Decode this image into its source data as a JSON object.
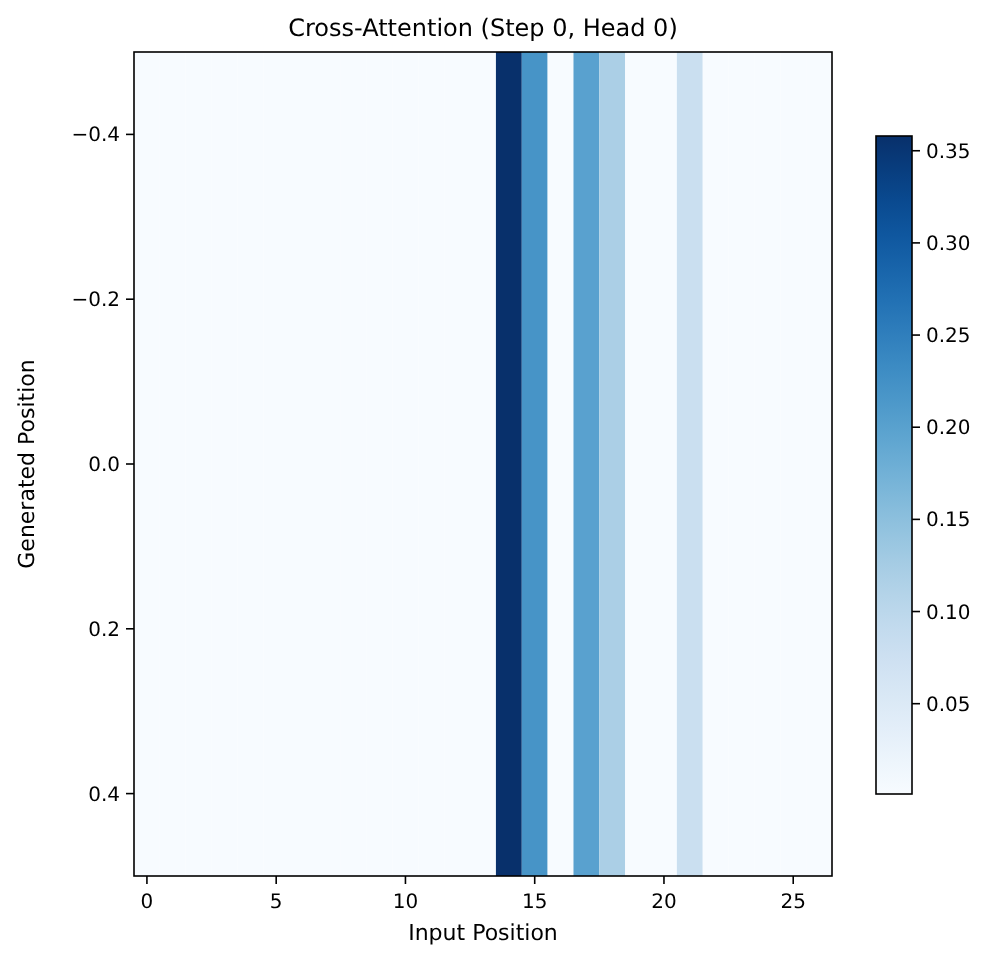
{
  "chart_data": {
    "type": "heatmap",
    "title": "Cross-Attention (Step 0, Head 0)",
    "xlabel": "Input Position",
    "ylabel": "Generated Position",
    "x": [
      0,
      1,
      2,
      3,
      4,
      5,
      6,
      7,
      8,
      9,
      10,
      11,
      12,
      13,
      14,
      15,
      16,
      17,
      18,
      19,
      20,
      21,
      22,
      23,
      24,
      25,
      26
    ],
    "cells": [
      [
        0.001,
        0.001,
        0.001,
        0.001,
        0.001,
        0.001,
        0.001,
        0.001,
        0.001,
        0.001,
        0.001,
        0.001,
        0.001,
        0.001,
        0.358,
        0.22,
        0.001,
        0.2,
        0.12,
        0.001,
        0.001,
        0.08,
        0.001,
        0.001,
        0.001,
        0.001,
        0.001
      ]
    ],
    "xlim": [
      -0.5,
      26.5
    ],
    "xticks": [
      0,
      5,
      10,
      15,
      20,
      25
    ],
    "ylim": [
      0.5,
      -0.5
    ],
    "yticks": [
      {
        "value": -0.4,
        "label": "−0.4"
      },
      {
        "value": -0.2,
        "label": "−0.2"
      },
      {
        "value": 0,
        "label": "0.0"
      },
      {
        "value": 0.2,
        "label": "0.2"
      },
      {
        "value": 0.4,
        "label": "0.4"
      }
    ],
    "clim": [
      0.001,
      0.358
    ],
    "cticks": [
      0.05,
      {
        "value": 0.1,
        "label": "0.10"
      },
      0.15,
      {
        "value": 0.2,
        "label": "0.20"
      },
      0.25,
      {
        "value": 0.3,
        "label": "0.30"
      },
      0.35
    ]
  }
}
